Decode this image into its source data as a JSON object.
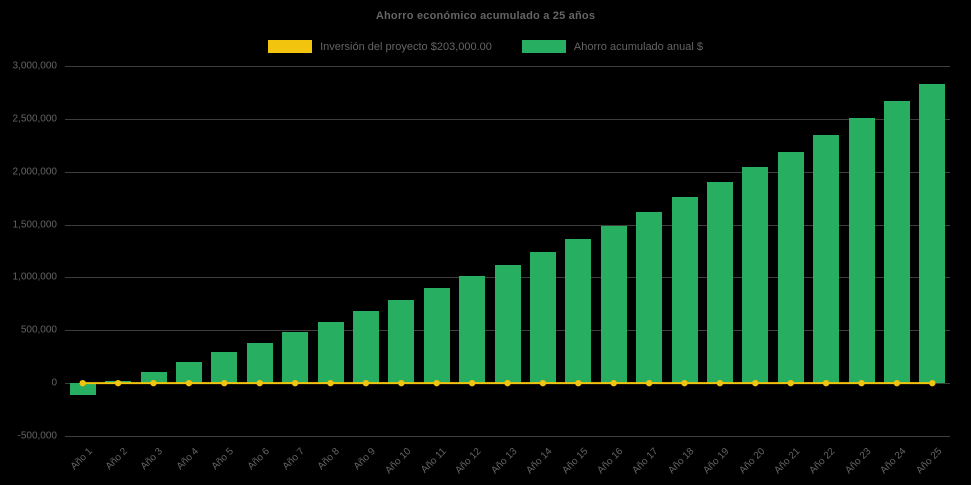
{
  "title": "Ahorro económico acumulado a 25 años",
  "legend": [
    {
      "label": "Inversión del proyecto $203,000.00",
      "color": "#F2C40E"
    },
    {
      "label": "Ahorro acumulado anual $",
      "color": "#27AE60"
    }
  ],
  "colors": {
    "background": "#000000",
    "text": "#646464",
    "gridline": "#3d3d3d",
    "bar_green": "#27AE60",
    "line_yellow": "#F2C40E"
  },
  "chart_data": {
    "type": "bar",
    "title": "Ahorro económico acumulado a 25 años",
    "xlabel": "",
    "ylabel": "",
    "ylim": [
      -500000,
      3000000
    ],
    "ytick_step": 500000,
    "grid": true,
    "legend_position": "top",
    "categories": [
      "Año 1",
      "Año 2",
      "Año 3",
      "Año 4",
      "Año 5",
      "Año 6",
      "Año 7",
      "Año 8",
      "Año 9",
      "Año 10",
      "Año 11",
      "Año 12",
      "Año 13",
      "Año 14",
      "Año 15",
      "Año 16",
      "Año 17",
      "Año 18",
      "Año 19",
      "Año 20",
      "Año 21",
      "Año 22",
      "Año 23",
      "Año 24",
      "Año 25"
    ],
    "series": [
      {
        "name": "Inversión del proyecto $203,000.00",
        "type": "line",
        "color": "#F2C40E",
        "values": [
          0,
          0,
          0,
          0,
          0,
          0,
          0,
          0,
          0,
          0,
          0,
          0,
          0,
          0,
          0,
          0,
          0,
          0,
          0,
          0,
          0,
          0,
          0,
          0,
          0
        ]
      },
      {
        "name": "Ahorro acumulado anual $",
        "type": "bar",
        "color": "#27AE60",
        "values": [
          -110000,
          20000,
          110000,
          200000,
          290000,
          380000,
          480000,
          580000,
          680000,
          790000,
          900000,
          1010000,
          1120000,
          1240000,
          1360000,
          1490000,
          1620000,
          1760000,
          1900000,
          2040000,
          2190000,
          2350000,
          2510000,
          2670000,
          2830000
        ]
      }
    ]
  }
}
